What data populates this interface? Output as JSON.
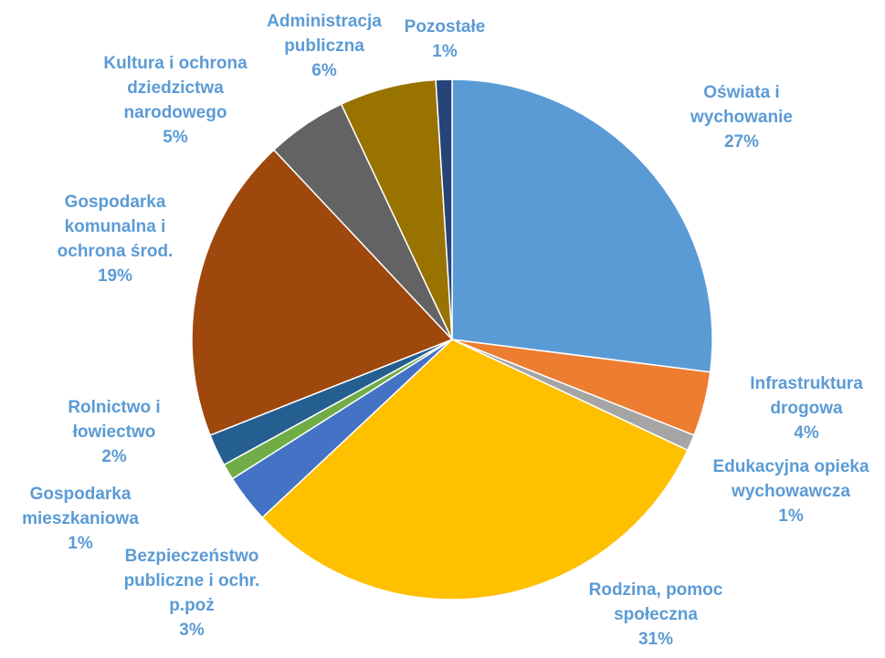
{
  "chart_data": {
    "type": "pie",
    "categories": [
      "Oświata i wychowanie",
      "Infrastruktura drogowa",
      "Edukacyjna opieka wychowawcza",
      "Rodzina, pomoc społeczna",
      "Bezpieczeństwo publiczne i ochr. p.poż",
      "Gospodarka mieszkaniowa",
      "Rolnictwo i łowiectwo",
      "Gospodarka komunalna i ochrona środ.",
      "Kultura i ochrona dziedzictwa narodowego",
      "Administracja publiczna",
      "Pozostałe"
    ],
    "values": [
      27,
      4,
      1,
      31,
      3,
      1,
      2,
      19,
      5,
      6,
      1
    ],
    "value_labels": [
      "27%",
      "4%",
      "1%",
      "31%",
      "3%",
      "1%",
      "2%",
      "19%",
      "5%",
      "6%",
      "1%"
    ],
    "colors": [
      "#5b9bd5",
      "#ed7d31",
      "#a5a5a5",
      "#ffc000",
      "#4472c4",
      "#70ad47",
      "#255e91",
      "#9e480e",
      "#636363",
      "#997300",
      "#264478"
    ]
  }
}
